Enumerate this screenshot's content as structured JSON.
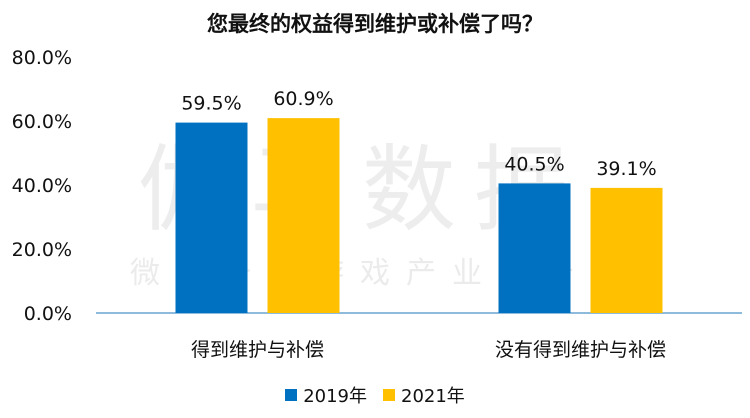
{
  "chart_data": {
    "type": "bar",
    "title": "您最终的权益得到维护或补偿了吗？",
    "categories": [
      "得到维护与补偿",
      "没有得到维护与补偿"
    ],
    "series": [
      {
        "name": "2019年",
        "values": [
          59.5,
          40.5
        ],
        "labels": [
          "59.5%",
          "40.5%"
        ],
        "color": "#0070C0"
      },
      {
        "name": "2021年",
        "values": [
          60.9,
          39.1
        ],
        "labels": [
          "60.9%",
          "39.1%"
        ],
        "color": "#FFC000"
      }
    ],
    "ylim": [
      0,
      80
    ],
    "yticks": [
      0,
      20,
      40,
      60,
      80
    ],
    "ytick_labels": [
      "0.0%",
      "20.0%",
      "40.0%",
      "60.0%",
      "80.0%"
    ],
    "grid": false,
    "legend_position": "bottom",
    "axis_color": "#4a90c8"
  },
  "watermark": {
    "main": "伽马数据",
    "sub": "微信号：游戏产业报告"
  }
}
